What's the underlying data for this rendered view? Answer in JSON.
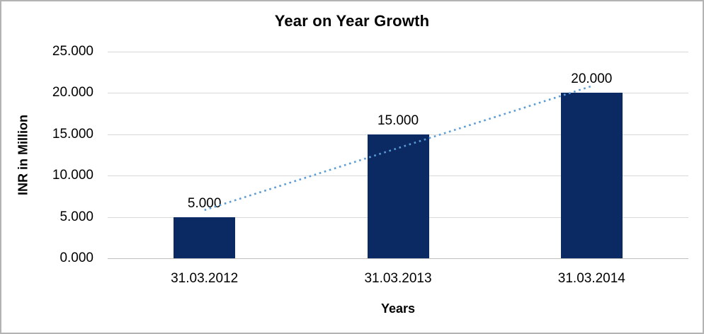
{
  "chart_data": {
    "type": "bar",
    "title": "Year on Year Growth",
    "xlabel": "Years",
    "ylabel": "INR in Million",
    "categories": [
      "31.03.2012",
      "31.03.2013",
      "31.03.2014"
    ],
    "values": [
      5,
      15,
      20
    ],
    "data_labels": [
      "5.000",
      "15.000",
      "20.000"
    ],
    "ylim": [
      0,
      25
    ],
    "ytick_step": 5,
    "ytick_labels": [
      "0.000",
      "5.000",
      "10.000",
      "15.000",
      "20.000",
      "25.000"
    ],
    "grid": true,
    "legend": false,
    "bar_color": "#0b2963",
    "gridline_color": "#d9d9d9",
    "axis_line_color": "#c0c0c0",
    "trendline": {
      "type": "linear",
      "style": "dotted",
      "color": "#5b9bd5",
      "fitted_values": [
        5.833,
        13.333,
        20.833
      ]
    }
  }
}
